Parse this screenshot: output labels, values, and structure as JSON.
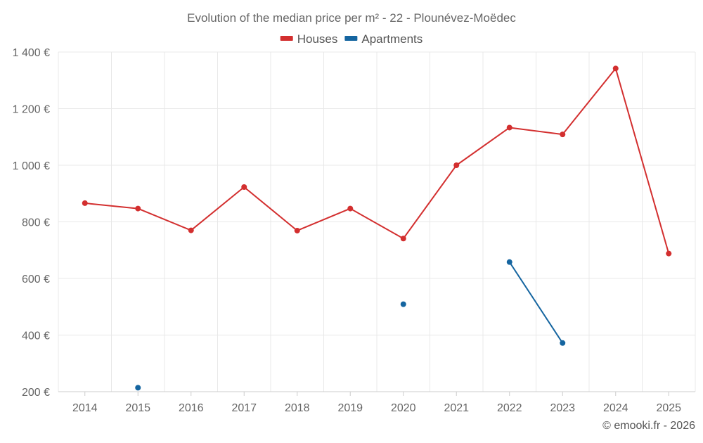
{
  "chart_data": {
    "type": "line",
    "title": "Evolution of the median price per m² - 22 - Plounévez-Moëdec",
    "xlabel": "",
    "ylabel": "",
    "categories": [
      "2014",
      "2015",
      "2016",
      "2017",
      "2018",
      "2019",
      "2020",
      "2021",
      "2022",
      "2023",
      "2024",
      "2025"
    ],
    "ylim": [
      200,
      1400
    ],
    "yticks": [
      200,
      400,
      600,
      800,
      1000,
      1200,
      1400
    ],
    "ytick_labels": [
      "200 €",
      "400 €",
      "600 €",
      "800 €",
      "1 000 €",
      "1 200 €",
      "1 400 €"
    ],
    "grid": true,
    "legend_position": "top-center",
    "series": [
      {
        "name": "Houses",
        "color": "#d32f2f",
        "values": [
          866,
          847,
          770,
          923,
          769,
          847,
          741,
          1000,
          1133,
          1109,
          1342,
          688
        ]
      },
      {
        "name": "Apartments",
        "color": "#1565a0",
        "values": [
          null,
          214,
          null,
          null,
          null,
          null,
          509,
          null,
          658,
          372,
          null,
          null
        ]
      }
    ],
    "credit": "© emooki.fr - 2026"
  }
}
